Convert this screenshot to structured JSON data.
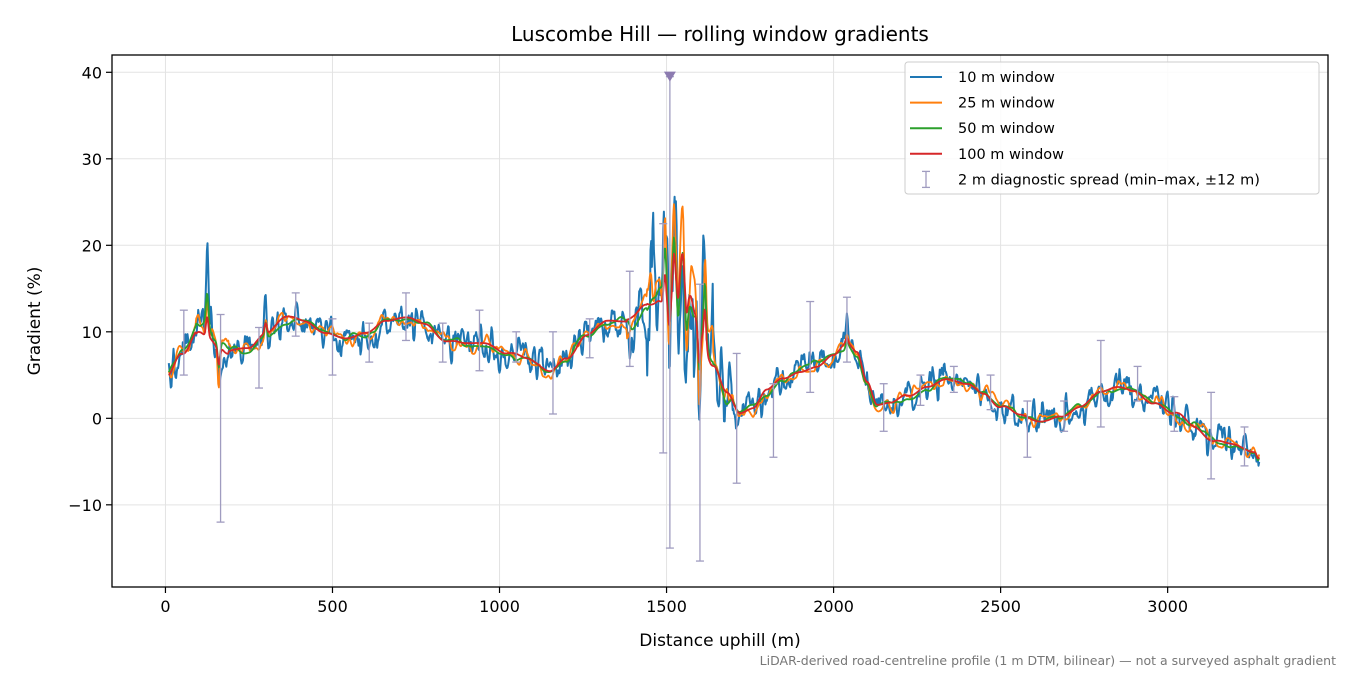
{
  "chart_data": {
    "type": "line",
    "title": "Luscombe Hill — rolling window gradients",
    "xlabel": "Distance uphill (m)",
    "ylabel": "Gradient (%)",
    "xlim": [
      -160,
      3480
    ],
    "ylim": [
      -19.5,
      42
    ],
    "xticks": [
      0,
      500,
      1000,
      1500,
      2000,
      2500,
      3000
    ],
    "yticks": [
      -10,
      0,
      10,
      20,
      30,
      40
    ],
    "xtick_labels": [
      "0",
      "500",
      "1000",
      "1500",
      "2000",
      "2500",
      "3000"
    ],
    "ytick_labels": [
      "−10",
      "0",
      "10",
      "20",
      "30",
      "40"
    ],
    "grid": true,
    "legend_position": "top-right",
    "footnote": "LiDAR-derived road-centreline profile (1 m DTM, bilinear) — not a surveyed asphalt gradient",
    "trend": {
      "x": [
        0,
        50,
        100,
        130,
        160,
        190,
        250,
        300,
        360,
        420,
        480,
        540,
        600,
        660,
        720,
        780,
        840,
        900,
        960,
        1020,
        1080,
        1150,
        1200,
        1260,
        1320,
        1380,
        1440,
        1480,
        1510,
        1540,
        1570,
        1600,
        1640,
        1680,
        1720,
        1760,
        1800,
        1850,
        1900,
        1950,
        2000,
        2040,
        2070,
        2100,
        2130,
        2170,
        2220,
        2280,
        2340,
        2400,
        2450,
        2500,
        2560,
        2620,
        2680,
        2740,
        2800,
        2860,
        2900,
        2960,
        3020,
        3080,
        3140,
        3200,
        3260,
        3280
      ],
      "y": [
        4.5,
        7.5,
        10.5,
        10.0,
        9.0,
        8.0,
        8.0,
        9.5,
        11.5,
        11.0,
        10.0,
        9.0,
        9.5,
        11.0,
        11.5,
        11.0,
        9.0,
        8.5,
        8.5,
        7.5,
        7.0,
        5.5,
        7.0,
        9.5,
        11.0,
        11.0,
        13.0,
        14.5,
        15.0,
        18.0,
        14.5,
        10.5,
        6.0,
        3.0,
        0.5,
        1.0,
        3.0,
        4.5,
        5.5,
        6.0,
        7.0,
        8.5,
        7.5,
        4.0,
        1.5,
        1.5,
        2.5,
        3.5,
        4.5,
        4.0,
        3.0,
        1.5,
        0.5,
        -0.2,
        0.5,
        1.5,
        3.0,
        3.5,
        3.0,
        2.0,
        0.5,
        -1.0,
        -2.5,
        -3.0,
        -4.0,
        -4.5
      ]
    },
    "series": [
      {
        "name": "10 m window",
        "color": "#1f77b4",
        "window": 10
      },
      {
        "name": "25 m window",
        "color": "#ff7f0e",
        "window": 25
      },
      {
        "name": "50 m window",
        "color": "#2ca02c",
        "window": 50
      },
      {
        "name": "100 m window",
        "color": "#d62728",
        "window": 100
      }
    ],
    "spikes": [
      {
        "x": 125,
        "y": 18.5
      },
      {
        "x": 160,
        "y": 2.0
      },
      {
        "x": 300,
        "y": 13.8
      },
      {
        "x": 1495,
        "y": 26.0
      },
      {
        "x": 1508,
        "y": 5.0
      },
      {
        "x": 1522,
        "y": 30.5
      },
      {
        "x": 1535,
        "y": 6.5
      },
      {
        "x": 1548,
        "y": 25.0
      },
      {
        "x": 1560,
        "y": 5.5
      },
      {
        "x": 1580,
        "y": 12.0
      },
      {
        "x": 1598,
        "y": -2.0
      },
      {
        "x": 1615,
        "y": 24.0
      },
      {
        "x": 2040,
        "y": 10.5
      },
      {
        "x": 3270,
        "y": -6.0
      }
    ],
    "diagnostic": {
      "name": "2 m diagnostic spread (min–max, ±12 m)",
      "color": "#a09cc0",
      "points": [
        {
          "x": 55,
          "min": 5.0,
          "max": 12.5
        },
        {
          "x": 165,
          "min": -12.0,
          "max": 12.0
        },
        {
          "x": 280,
          "min": 3.5,
          "max": 10.5
        },
        {
          "x": 390,
          "min": 9.5,
          "max": 14.5
        },
        {
          "x": 500,
          "min": 5.0,
          "max": 11.5
        },
        {
          "x": 610,
          "min": 6.5,
          "max": 11.0
        },
        {
          "x": 720,
          "min": 9.0,
          "max": 14.5
        },
        {
          "x": 830,
          "min": 6.5,
          "max": 11.0
        },
        {
          "x": 940,
          "min": 5.5,
          "max": 12.5
        },
        {
          "x": 1050,
          "min": 6.5,
          "max": 10.0
        },
        {
          "x": 1160,
          "min": 0.5,
          "max": 10.0
        },
        {
          "x": 1270,
          "min": 7.0,
          "max": 11.5
        },
        {
          "x": 1390,
          "min": 6.0,
          "max": 17.0
        },
        {
          "x": 1490,
          "min": -4.0,
          "max": 22.5
        },
        {
          "x": 1510,
          "min": -15.0,
          "max": 39.5
        },
        {
          "x": 1600,
          "min": -16.5,
          "max": 15.5
        },
        {
          "x": 1710,
          "min": -7.5,
          "max": 7.5
        },
        {
          "x": 1820,
          "min": -4.5,
          "max": 4.0
        },
        {
          "x": 1930,
          "min": 3.0,
          "max": 13.5
        },
        {
          "x": 2040,
          "min": 6.5,
          "max": 14.0
        },
        {
          "x": 2150,
          "min": -1.5,
          "max": 4.0
        },
        {
          "x": 2260,
          "min": 1.5,
          "max": 5.0
        },
        {
          "x": 2360,
          "min": 3.0,
          "max": 6.0
        },
        {
          "x": 2470,
          "min": 1.0,
          "max": 5.0
        },
        {
          "x": 2580,
          "min": -4.5,
          "max": 2.0
        },
        {
          "x": 2690,
          "min": -1.5,
          "max": 2.0
        },
        {
          "x": 2800,
          "min": -1.0,
          "max": 9.0
        },
        {
          "x": 2910,
          "min": 2.0,
          "max": 6.0
        },
        {
          "x": 3020,
          "min": -1.5,
          "max": 2.5
        },
        {
          "x": 3130,
          "min": -7.0,
          "max": 3.0
        },
        {
          "x": 3230,
          "min": -5.5,
          "max": -1.0
        }
      ],
      "clip_marker": {
        "x": 1510,
        "y": 39.5
      }
    }
  }
}
